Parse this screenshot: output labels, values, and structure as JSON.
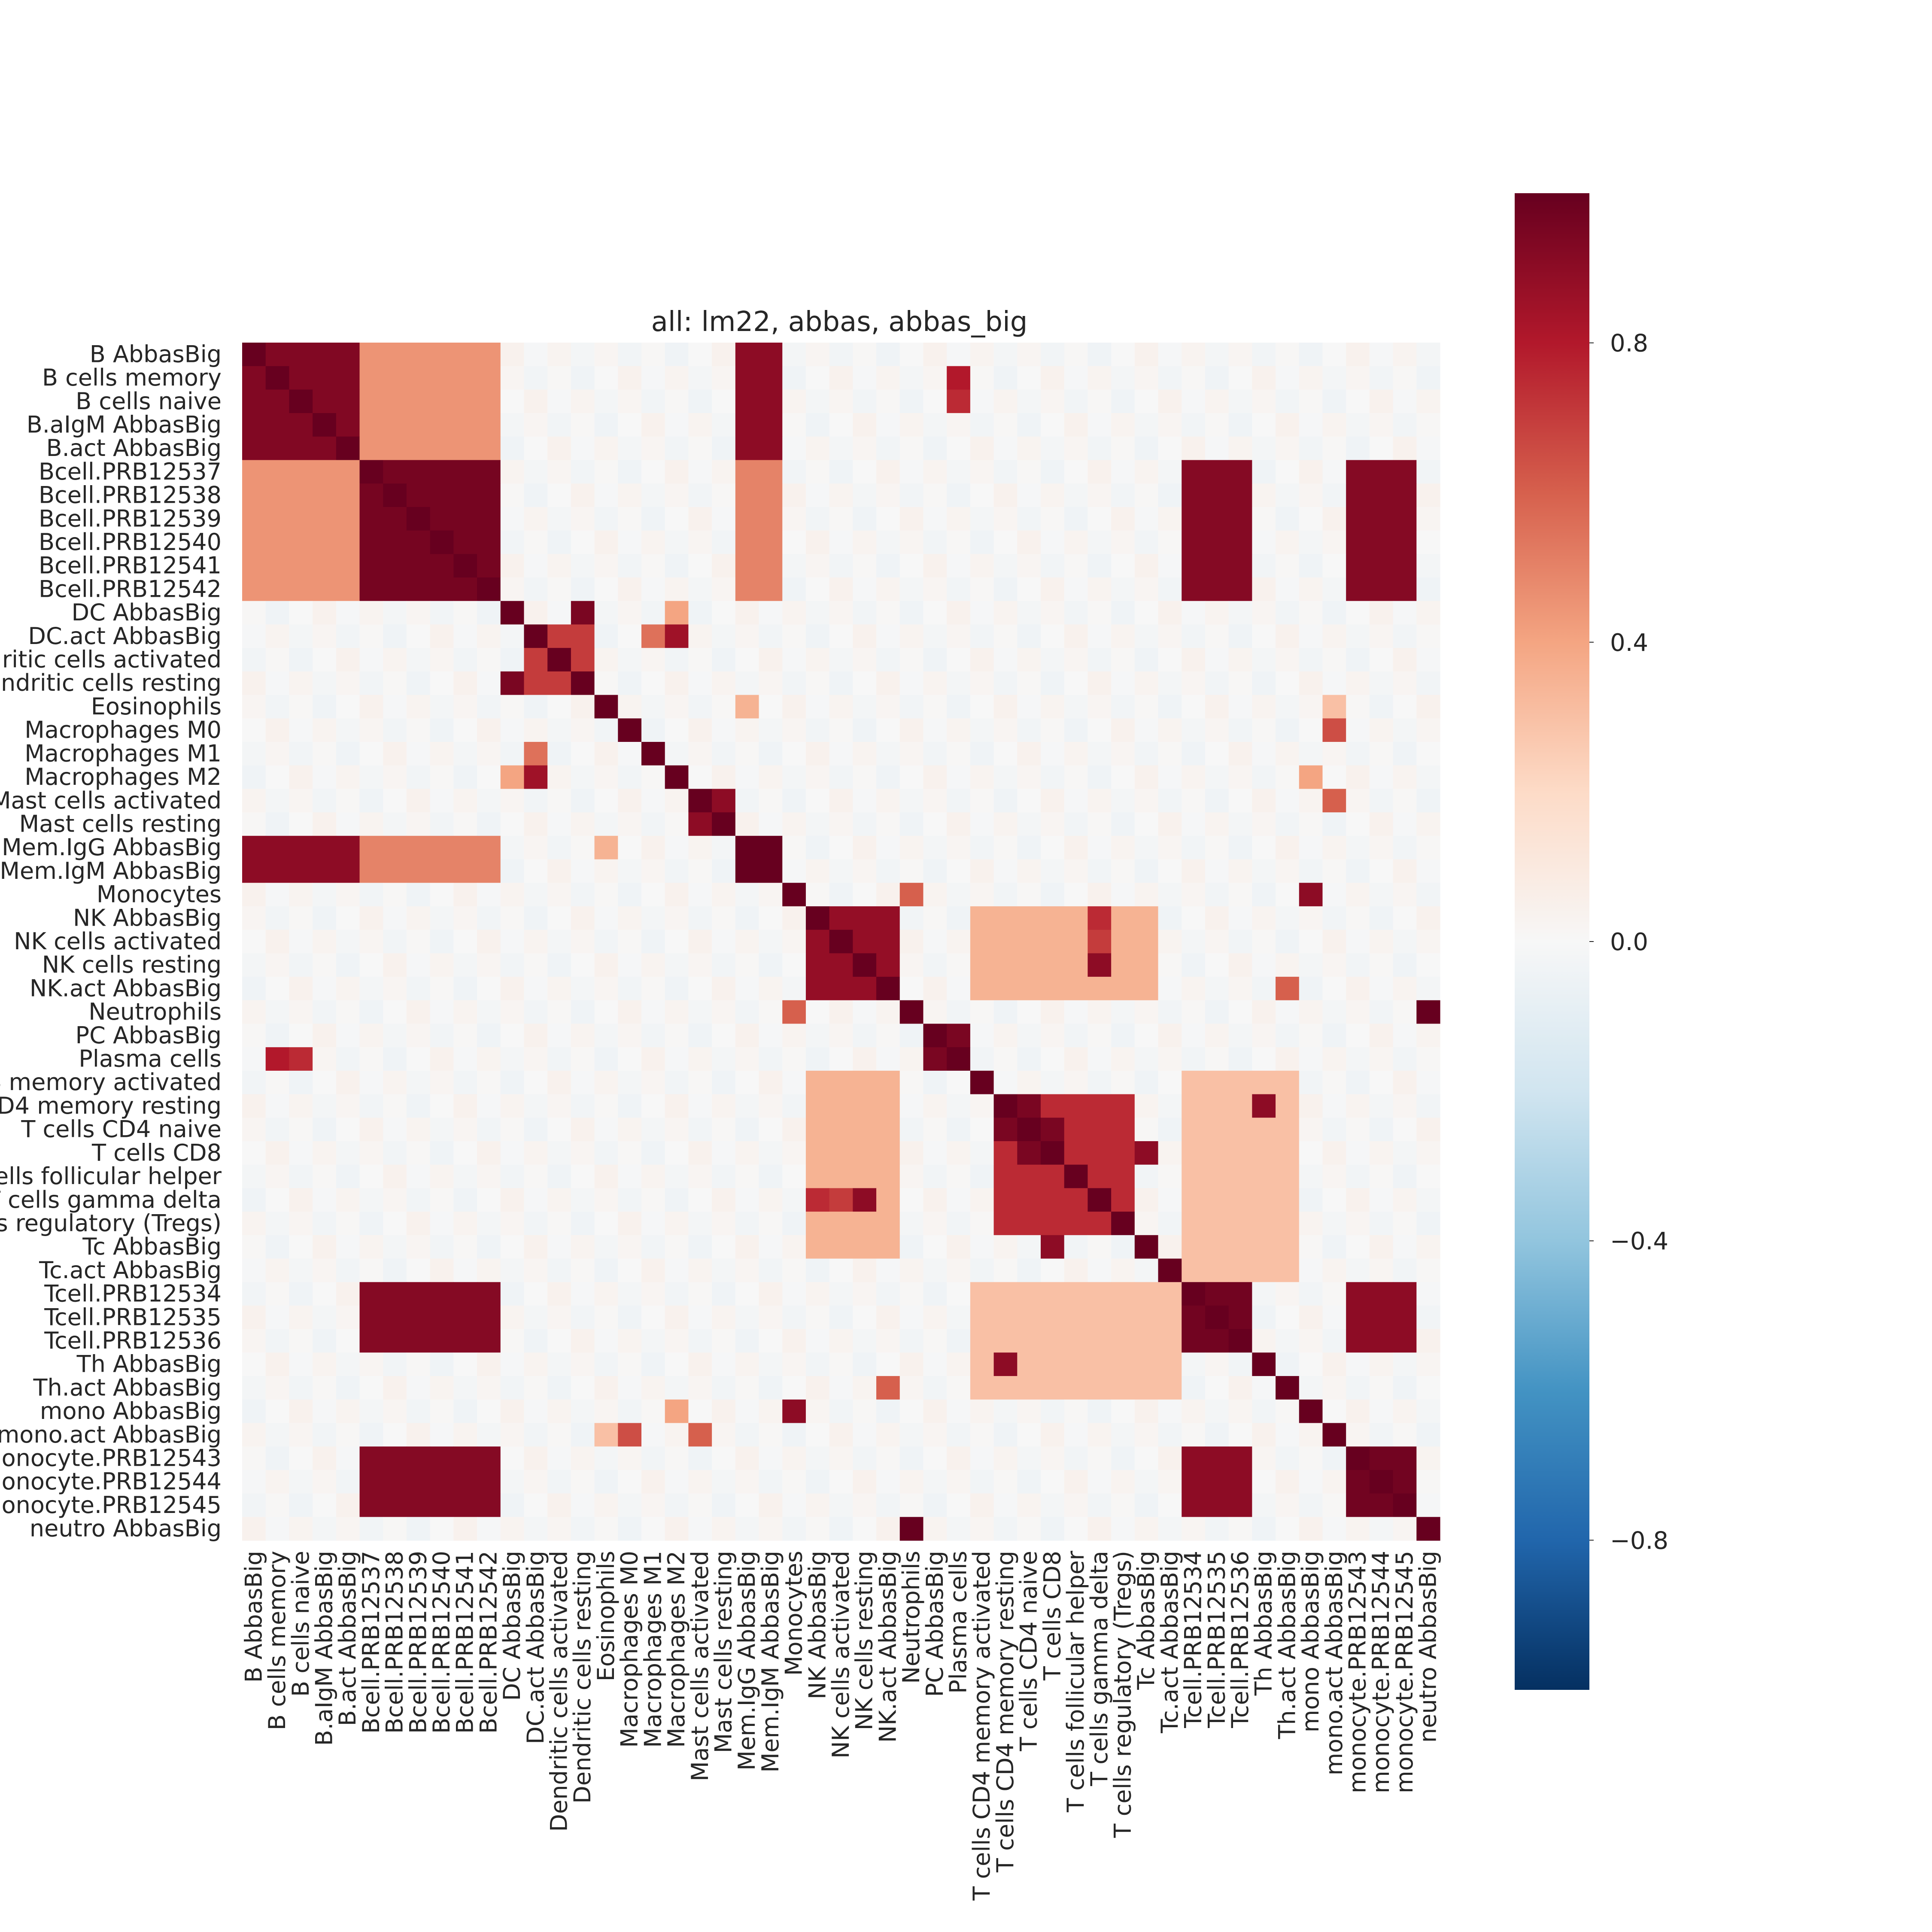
{
  "chart_data": {
    "type": "heatmap",
    "title": "all: lm22, abbas, abbas_big",
    "xlabel": "",
    "ylabel": "",
    "labels": [
      "B AbbasBig",
      "B cells memory",
      "B cells naive",
      "B.aIgM AbbasBig",
      "B.act AbbasBig",
      "Bcell.PRB12537",
      "Bcell.PRB12538",
      "Bcell.PRB12539",
      "Bcell.PRB12540",
      "Bcell.PRB12541",
      "Bcell.PRB12542",
      "DC AbbasBig",
      "DC.act AbbasBig",
      "Dendritic cells activated",
      "Dendritic cells resting",
      "Eosinophils",
      "Macrophages M0",
      "Macrophages M1",
      "Macrophages M2",
      "Mast cells activated",
      "Mast cells resting",
      "Mem.IgG AbbasBig",
      "Mem.IgM AbbasBig",
      "Monocytes",
      "NK AbbasBig",
      "NK cells activated",
      "NK cells resting",
      "NK.act AbbasBig",
      "Neutrophils",
      "PC AbbasBig",
      "Plasma cells",
      "T cells CD4 memory activated",
      "T cells CD4 memory resting",
      "T cells CD4 naive",
      "T cells CD8",
      "T cells follicular helper",
      "T cells gamma delta",
      "T cells regulatory (Tregs)",
      "Tc AbbasBig",
      "Tc.act AbbasBig",
      "Tcell.PRB12534",
      "Tcell.PRB12535",
      "Tcell.PRB12536",
      "Th AbbasBig",
      "Th.act AbbasBig",
      "mono AbbasBig",
      "mono.act AbbasBig",
      "monocyte.PRB12543",
      "monocyte.PRB12544",
      "monocyte.PRB12545",
      "neutro AbbasBig"
    ],
    "value_range": [
      -1,
      1
    ],
    "colorbar": {
      "ticks": [
        0.8,
        0.4,
        0.0,
        -0.4,
        -0.8
      ],
      "tick_labels": [
        "0.8",
        "0.4",
        "0.0",
        "−0.4",
        "−0.8"
      ]
    },
    "blocks_note_values": [
      {
        "rows": [
          0,
          4
        ],
        "cols": [
          0,
          4
        ],
        "value": 0.93
      },
      {
        "rows": [
          5,
          10
        ],
        "cols": [
          5,
          10
        ],
        "value": 0.96
      },
      {
        "rows": [
          40,
          42
        ],
        "cols": [
          40,
          42
        ],
        "value": 0.97
      },
      {
        "rows": [
          47,
          49
        ],
        "cols": [
          47,
          49
        ],
        "value": 0.97
      },
      {
        "rows": [
          5,
          10
        ],
        "cols": [
          40,
          42
        ],
        "value": 0.92
      },
      {
        "rows": [
          5,
          10
        ],
        "cols": [
          47,
          49
        ],
        "value": 0.92
      },
      {
        "rows": [
          40,
          42
        ],
        "cols": [
          47,
          49
        ],
        "value": 0.9
      },
      {
        "rows": [
          0,
          4
        ],
        "cols": [
          21,
          22
        ],
        "value": 0.9
      },
      {
        "rows": [
          21,
          22
        ],
        "cols": [
          21,
          22
        ],
        "value": 1.0
      },
      {
        "rows": [
          24,
          27
        ],
        "cols": [
          24,
          27
        ],
        "value": 0.88
      },
      {
        "rows": [
          32,
          37
        ],
        "cols": [
          32,
          37
        ],
        "value": 0.75
      },
      {
        "rows": [
          0,
          4
        ],
        "cols": [
          5,
          10
        ],
        "value": 0.45
      },
      {
        "rows": [
          5,
          10
        ],
        "cols": [
          21,
          22
        ],
        "value": 0.5
      },
      {
        "rows": [
          24,
          27
        ],
        "cols": [
          31,
          38
        ],
        "value": 0.35
      },
      {
        "rows": [
          31,
          39
        ],
        "cols": [
          40,
          44
        ],
        "value": 0.3
      },
      {
        "rows": [
          12,
          14
        ],
        "cols": [
          12,
          14
        ],
        "value": 0.7
      }
    ],
    "pair_values": [
      {
        "a": 1,
        "b": 30,
        "value": 0.8
      },
      {
        "a": 2,
        "b": 30,
        "value": 0.75
      },
      {
        "a": 11,
        "b": 14,
        "value": 0.95
      },
      {
        "a": 12,
        "b": 17,
        "value": 0.55
      },
      {
        "a": 12,
        "b": 18,
        "value": 0.85
      },
      {
        "a": 11,
        "b": 18,
        "value": 0.4
      },
      {
        "a": 15,
        "b": 21,
        "value": 0.35
      },
      {
        "a": 16,
        "b": 46,
        "value": 0.65
      },
      {
        "a": 19,
        "b": 20,
        "value": 0.9
      },
      {
        "a": 19,
        "b": 46,
        "value": 0.6
      },
      {
        "a": 23,
        "b": 45,
        "value": 0.9
      },
      {
        "a": 23,
        "b": 28,
        "value": 0.6
      },
      {
        "a": 28,
        "b": 50,
        "value": 1.0
      },
      {
        "a": 29,
        "b": 30,
        "value": 0.95
      },
      {
        "a": 26,
        "b": 36,
        "value": 0.9
      },
      {
        "a": 24,
        "b": 36,
        "value": 0.75
      },
      {
        "a": 25,
        "b": 36,
        "value": 0.7
      },
      {
        "a": 27,
        "b": 44,
        "value": 0.6
      },
      {
        "a": 32,
        "b": 43,
        "value": 0.9
      },
      {
        "a": 34,
        "b": 38,
        "value": 0.9
      },
      {
        "a": 33,
        "b": 34,
        "value": 0.95
      },
      {
        "a": 32,
        "b": 33,
        "value": 0.95
      },
      {
        "a": 45,
        "b": 18,
        "value": 0.4
      },
      {
        "a": 46,
        "b": 15,
        "value": 0.3
      }
    ],
    "legend": "none",
    "grid": false
  }
}
